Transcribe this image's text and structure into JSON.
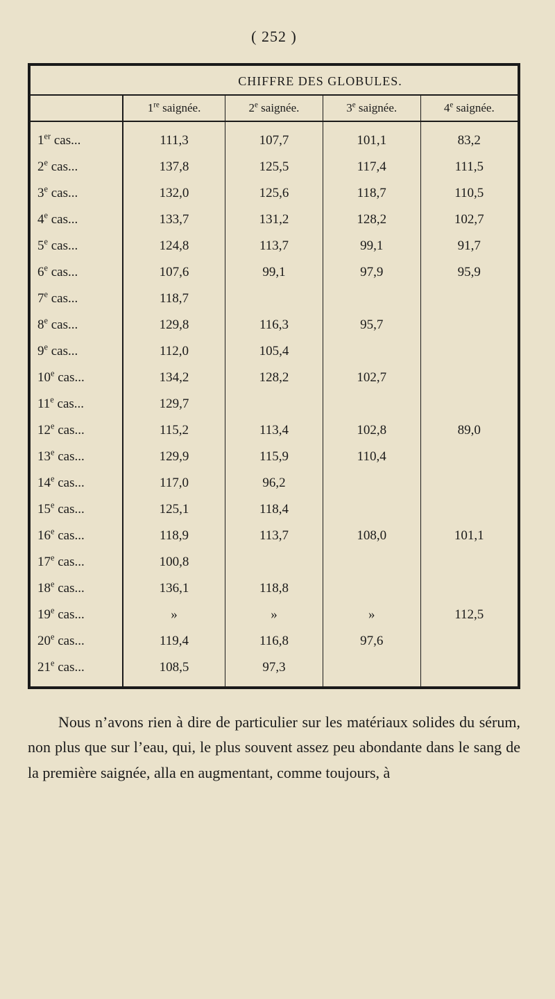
{
  "page_number": "( 252 )",
  "table_title": "CHIFFRE DES GLOBULES.",
  "headers": {
    "stub": "",
    "c1": "1re saignée.",
    "c2": "2e saignée.",
    "c3": "3e saignée.",
    "c4": "4e saignée."
  },
  "rows": [
    {
      "stub": "1er cas...",
      "c1": "111,3",
      "c2": "107,7",
      "c3": "101,1",
      "c4": "83,2"
    },
    {
      "stub": "2e  cas...",
      "c1": "137,8",
      "c2": "125,5",
      "c3": "117,4",
      "c4": "111,5"
    },
    {
      "stub": "3e  cas...",
      "c1": "132,0",
      "c2": "125,6",
      "c3": "118,7",
      "c4": "110,5"
    },
    {
      "stub": "4e  cas...",
      "c1": "133,7",
      "c2": "131,2",
      "c3": "128,2",
      "c4": "102,7"
    },
    {
      "stub": "5e  cas...",
      "c1": "124,8",
      "c2": "113,7",
      "c3": "99,1",
      "c4": "91,7"
    },
    {
      "stub": "6e  cas...",
      "c1": "107,6",
      "c2": "99,1",
      "c3": "97,9",
      "c4": "95,9"
    },
    {
      "stub": "7e  cas...",
      "c1": "118,7",
      "c2": "",
      "c3": "",
      "c4": ""
    },
    {
      "stub": "8e  cas...",
      "c1": "129,8",
      "c2": "116,3",
      "c3": "95,7",
      "c4": ""
    },
    {
      "stub": "9e  cas...",
      "c1": "112,0",
      "c2": "105,4",
      "c3": "",
      "c4": ""
    },
    {
      "stub": "10e cas...",
      "c1": "134,2",
      "c2": "128,2",
      "c3": "102,7",
      "c4": ""
    },
    {
      "stub": "11e cas...",
      "c1": "129,7",
      "c2": "",
      "c3": "",
      "c4": ""
    },
    {
      "stub": "12e cas...",
      "c1": "115,2",
      "c2": "113,4",
      "c3": "102,8",
      "c4": "89,0"
    },
    {
      "stub": "13e cas...",
      "c1": "129,9",
      "c2": "115,9",
      "c3": "110,4",
      "c4": ""
    },
    {
      "stub": "14e cas...",
      "c1": "117,0",
      "c2": "96,2",
      "c3": "",
      "c4": ""
    },
    {
      "stub": "15e cas...",
      "c1": "125,1",
      "c2": "118,4",
      "c3": "",
      "c4": ""
    },
    {
      "stub": "16e cas...",
      "c1": "118,9",
      "c2": "113,7",
      "c3": "108,0",
      "c4": "101,1"
    },
    {
      "stub": "17e cas...",
      "c1": "100,8",
      "c2": "",
      "c3": "",
      "c4": ""
    },
    {
      "stub": "18e cas...",
      "c1": "136,1",
      "c2": "118,8",
      "c3": "",
      "c4": ""
    },
    {
      "stub": "19e cas...",
      "c1": "»",
      "c2": "»",
      "c3": "»",
      "c4": "112,5"
    },
    {
      "stub": "20e cas...",
      "c1": "119,4",
      "c2": "116,8",
      "c3": "97,6",
      "c4": ""
    },
    {
      "stub": "21e cas...",
      "c1": "108,5",
      "c2": "97,3",
      "c3": "",
      "c4": ""
    }
  ],
  "paragraph": "Nous n’avons rien à dire de particulier sur les maté­riaux solides du sérum, non plus que sur l’eau, qui, le plus souvent assez peu abondante dans le sang de la pre­mière saignée, alla en augmentant, comme toujours, à"
}
